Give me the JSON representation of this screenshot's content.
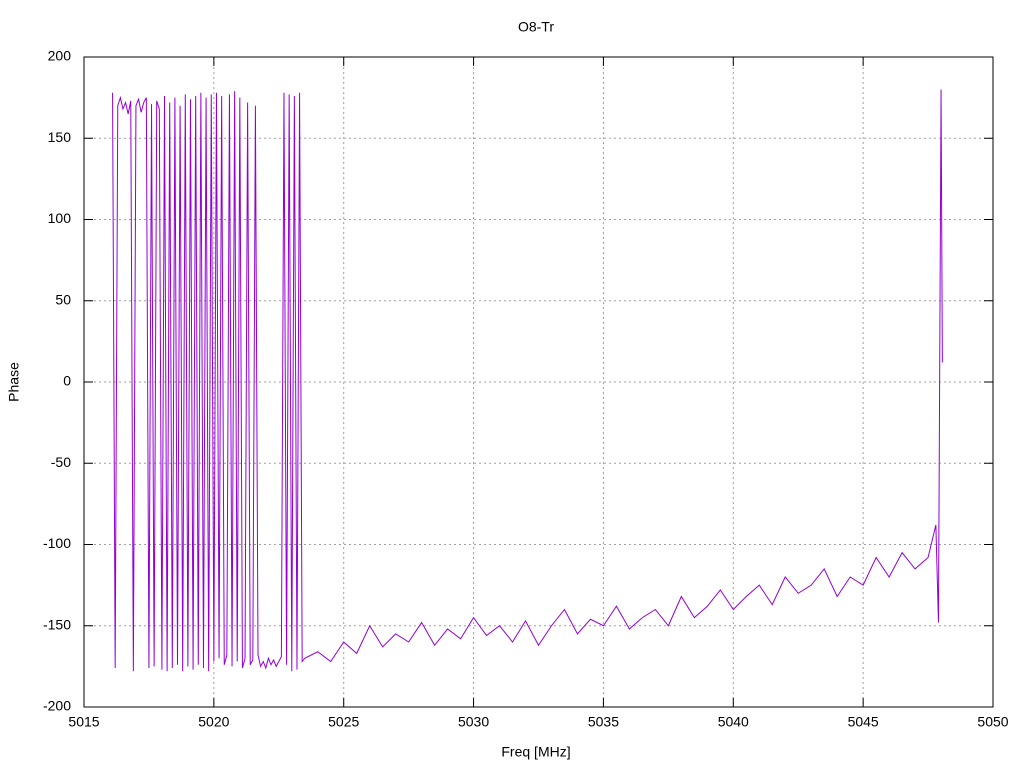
{
  "chart_data": {
    "type": "line",
    "title": "O8-Tr",
    "x_label": "Freq [MHz]",
    "y_label": "Phase",
    "xlim": [
      5015,
      5050
    ],
    "ylim": [
      -200,
      200
    ],
    "xticks": [
      5015,
      5020,
      5025,
      5030,
      5035,
      5040,
      5045,
      5050
    ],
    "yticks": [
      -200,
      -150,
      -100,
      -50,
      0,
      50,
      100,
      150,
      200
    ],
    "grid": true,
    "series": [
      {
        "color": "#9400d3",
        "x": [
          5016.1,
          5016.2,
          5016.3,
          5016.4,
          5016.5,
          5016.6,
          5016.7,
          5016.8,
          5016.9,
          5017.0,
          5017.1,
          5017.2,
          5017.3,
          5017.4,
          5017.5,
          5017.6,
          5017.7,
          5017.8,
          5017.9,
          5018.0,
          5018.1,
          5018.2,
          5018.3,
          5018.4,
          5018.5,
          5018.6,
          5018.7,
          5018.8,
          5018.9,
          5019.0,
          5019.1,
          5019.2,
          5019.3,
          5019.4,
          5019.5,
          5019.6,
          5019.7,
          5019.8,
          5019.9,
          5020.0,
          5020.1,
          5020.2,
          5020.3,
          5020.4,
          5020.5,
          5020.6,
          5020.7,
          5020.8,
          5020.9,
          5021.0,
          5021.1,
          5021.2,
          5021.3,
          5021.4,
          5021.5,
          5021.6,
          5021.7,
          5021.8,
          5021.9,
          5022.0,
          5022.1,
          5022.2,
          5022.3,
          5022.4,
          5022.5,
          5022.6,
          5022.7,
          5022.8,
          5022.9,
          5023.0,
          5023.1,
          5023.2,
          5023.3,
          5023.4,
          5023.5,
          5024,
          5024.5,
          5025,
          5025.5,
          5026,
          5026.5,
          5027,
          5027.5,
          5028,
          5028.5,
          5029,
          5029.5,
          5030,
          5030.5,
          5031,
          5031.5,
          5032,
          5032.5,
          5033,
          5033.5,
          5034,
          5034.5,
          5035,
          5035.5,
          5036,
          5036.5,
          5037,
          5037.5,
          5038,
          5038.5,
          5039,
          5039.5,
          5040,
          5040.5,
          5041,
          5041.5,
          5042,
          5042.5,
          5043,
          5043.5,
          5044,
          5044.5,
          5045,
          5045.5,
          5046,
          5046.5,
          5047,
          5047.5,
          5047.8,
          5047.9,
          5048.0,
          5048.05
        ],
        "values": [
          178,
          -176,
          170,
          175,
          168,
          172,
          165,
          173,
          -178,
          170,
          174,
          166,
          172,
          175,
          -176,
          171,
          -175,
          173,
          168,
          -177,
          176,
          -178,
          172,
          -176,
          175,
          -174,
          170,
          -178,
          177,
          -175,
          174,
          -177,
          176,
          -174,
          178,
          -176,
          175,
          -178,
          177,
          -172,
          178,
          -170,
          176,
          -174,
          -168,
          177,
          -175,
          179,
          -172,
          175,
          -176,
          -170,
          172,
          -174,
          -171,
          170,
          -168,
          -175,
          -172,
          -176,
          -170,
          -174,
          -171,
          -175,
          -172,
          -169,
          178,
          -174,
          177,
          -178,
          176,
          -177,
          178,
          -172,
          -170,
          -166,
          -172,
          -160,
          -167,
          -150,
          -163,
          -155,
          -160,
          -148,
          -162,
          -152,
          -158,
          -145,
          -156,
          -150,
          -160,
          -147,
          -162,
          -150,
          -140,
          -155,
          -146,
          -150,
          -138,
          -152,
          -145,
          -140,
          -150,
          -132,
          -145,
          -138,
          -128,
          -140,
          -132,
          -125,
          -137,
          -120,
          -130,
          -125,
          -115,
          -132,
          -120,
          -125,
          -108,
          -120,
          -105,
          -115,
          -108,
          -88,
          -148,
          180,
          12
        ]
      }
    ]
  }
}
